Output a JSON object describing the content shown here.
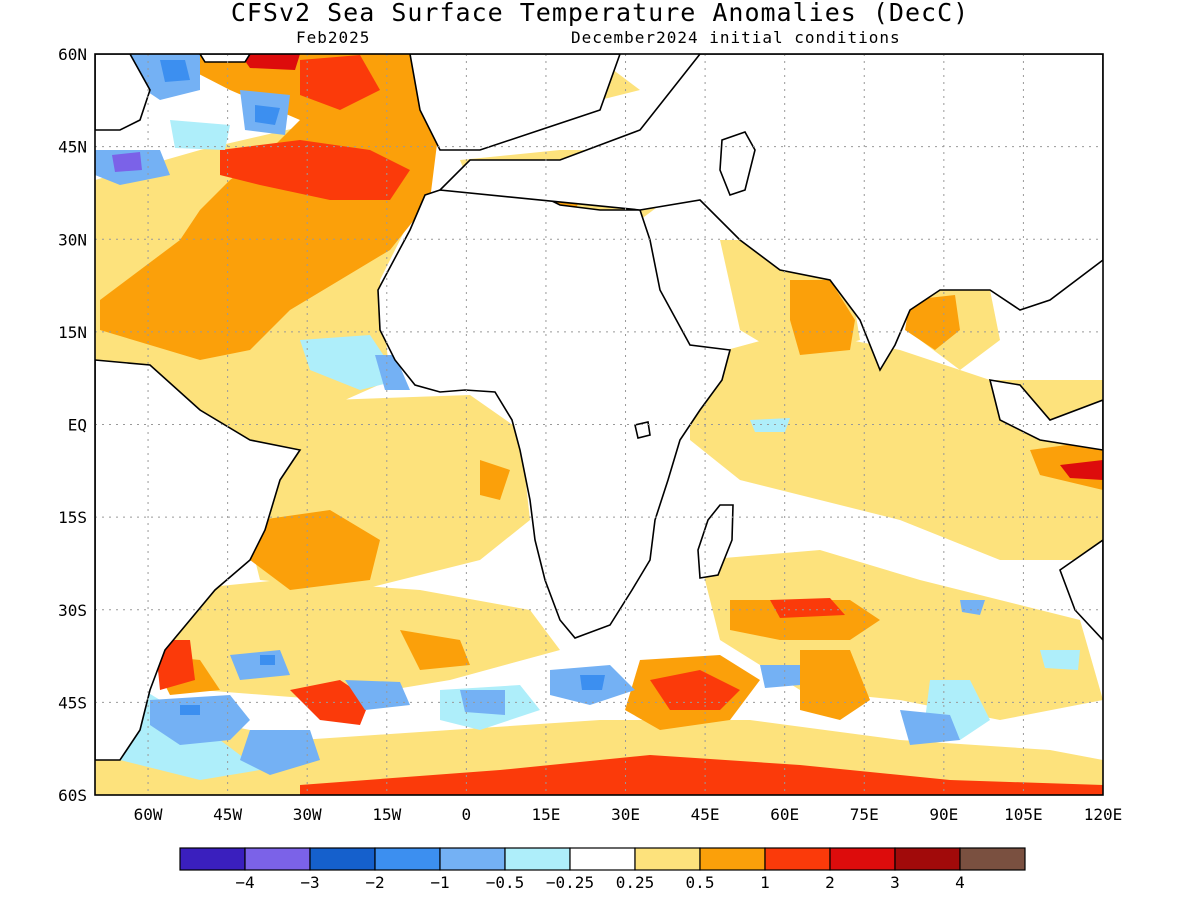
{
  "header": {
    "title": "CFSv2 Sea Surface Temperature Anomalies (DecC)",
    "subtitle_left": "Feb2025",
    "subtitle_right": "December2024 initial conditions"
  },
  "map": {
    "lon_range": [
      -70,
      120
    ],
    "lat_range": [
      -60,
      60
    ],
    "lat_ticks": [
      "60N",
      "45N",
      "30N",
      "15N",
      "EQ",
      "15S",
      "30S",
      "45S",
      "60S"
    ],
    "lon_ticks": [
      "60W",
      "45W",
      "30W",
      "15W",
      "0",
      "15E",
      "30E",
      "45E",
      "60E",
      "75E",
      "90E",
      "105E",
      "120E"
    ]
  },
  "legend": {
    "colors": [
      "#3a1fbe",
      "#7b62e8",
      "#1560cc",
      "#3c8ff0",
      "#74b1f4",
      "#aeeefa",
      "#ffffff",
      "#fde27c",
      "#fba00a",
      "#fb3a0a",
      "#dd0c0c",
      "#a10a0a",
      "#7a5040"
    ],
    "labels": [
      "−4",
      "−3",
      "−2",
      "−1",
      "−0.5",
      "−0.25",
      "0.25",
      "0.5",
      "1",
      "2",
      "3",
      "4"
    ]
  }
}
